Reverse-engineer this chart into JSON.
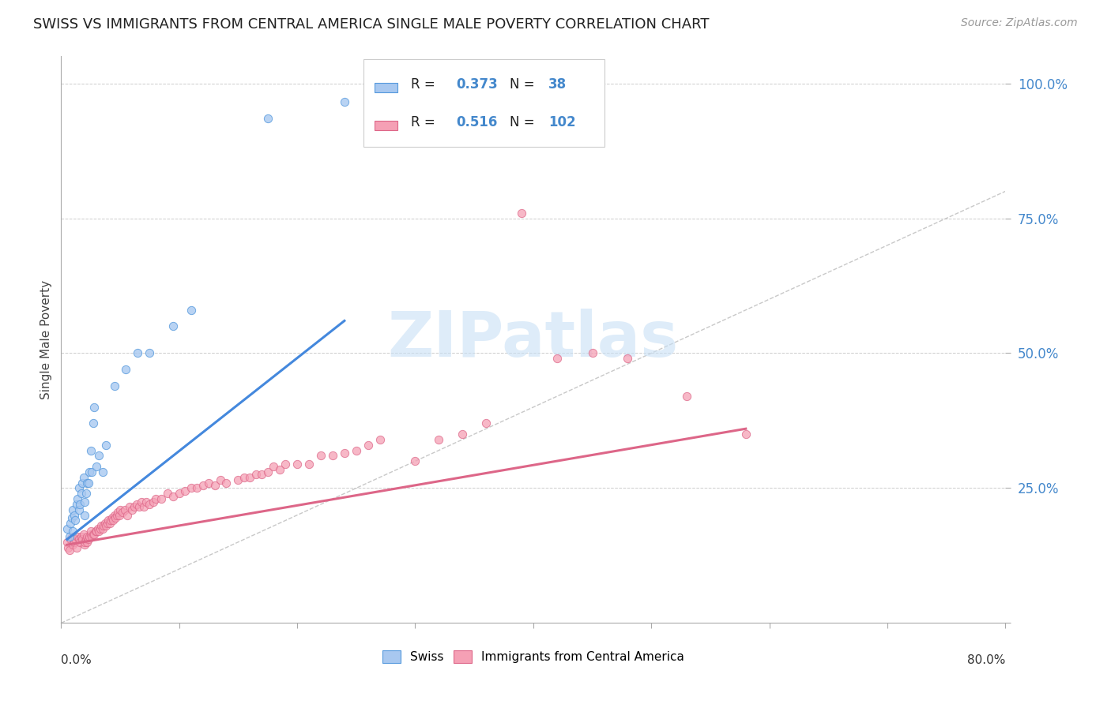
{
  "title": "SWISS VS IMMIGRANTS FROM CENTRAL AMERICA SINGLE MALE POVERTY CORRELATION CHART",
  "source": "Source: ZipAtlas.com",
  "ylabel": "Single Male Poverty",
  "xlim": [
    0.0,
    0.8
  ],
  "ylim": [
    0.0,
    1.05
  ],
  "ytick_vals": [
    0.0,
    0.25,
    0.5,
    0.75,
    1.0
  ],
  "ytick_labels": [
    "",
    "25.0%",
    "50.0%",
    "75.0%",
    "100.0%"
  ],
  "swiss_color": "#a8c8f0",
  "immigrant_color": "#f5a0b5",
  "swiss_edge_color": "#5599dd",
  "immigrant_edge_color": "#dd6688",
  "swiss_line_color": "#4488dd",
  "immigrant_line_color": "#dd6688",
  "diag_line_color": "#bbbbbb",
  "watermark_color": "#c8e0f5",
  "swiss_x": [
    0.005,
    0.007,
    0.008,
    0.009,
    0.01,
    0.01,
    0.011,
    0.012,
    0.013,
    0.014,
    0.015,
    0.015,
    0.016,
    0.017,
    0.018,
    0.019,
    0.02,
    0.02,
    0.021,
    0.022,
    0.023,
    0.024,
    0.025,
    0.026,
    0.027,
    0.028,
    0.03,
    0.032,
    0.035,
    0.038,
    0.045,
    0.055,
    0.065,
    0.075,
    0.095,
    0.11,
    0.175,
    0.24
  ],
  "swiss_y": [
    0.175,
    0.16,
    0.185,
    0.195,
    0.17,
    0.21,
    0.2,
    0.19,
    0.22,
    0.23,
    0.21,
    0.25,
    0.22,
    0.24,
    0.26,
    0.27,
    0.2,
    0.225,
    0.24,
    0.26,
    0.26,
    0.28,
    0.32,
    0.28,
    0.37,
    0.4,
    0.29,
    0.31,
    0.28,
    0.33,
    0.44,
    0.47,
    0.5,
    0.5,
    0.55,
    0.58,
    0.935,
    0.965
  ],
  "immigrant_x": [
    0.005,
    0.006,
    0.007,
    0.008,
    0.009,
    0.01,
    0.011,
    0.012,
    0.013,
    0.014,
    0.015,
    0.016,
    0.017,
    0.018,
    0.019,
    0.02,
    0.02,
    0.021,
    0.022,
    0.022,
    0.023,
    0.024,
    0.025,
    0.025,
    0.026,
    0.027,
    0.028,
    0.029,
    0.03,
    0.031,
    0.032,
    0.033,
    0.034,
    0.035,
    0.036,
    0.037,
    0.038,
    0.039,
    0.04,
    0.041,
    0.042,
    0.043,
    0.044,
    0.045,
    0.046,
    0.047,
    0.048,
    0.049,
    0.05,
    0.052,
    0.054,
    0.056,
    0.058,
    0.06,
    0.062,
    0.064,
    0.066,
    0.068,
    0.07,
    0.072,
    0.075,
    0.078,
    0.08,
    0.085,
    0.09,
    0.095,
    0.1,
    0.105,
    0.11,
    0.115,
    0.12,
    0.125,
    0.13,
    0.135,
    0.14,
    0.15,
    0.155,
    0.16,
    0.165,
    0.17,
    0.175,
    0.18,
    0.185,
    0.19,
    0.2,
    0.21,
    0.22,
    0.23,
    0.24,
    0.25,
    0.26,
    0.27,
    0.3,
    0.32,
    0.34,
    0.36,
    0.39,
    0.42,
    0.45,
    0.48,
    0.53,
    0.58
  ],
  "immigrant_y": [
    0.15,
    0.14,
    0.135,
    0.155,
    0.16,
    0.145,
    0.15,
    0.155,
    0.14,
    0.16,
    0.155,
    0.15,
    0.16,
    0.155,
    0.165,
    0.145,
    0.15,
    0.155,
    0.15,
    0.16,
    0.155,
    0.16,
    0.165,
    0.17,
    0.16,
    0.165,
    0.165,
    0.17,
    0.17,
    0.175,
    0.17,
    0.175,
    0.18,
    0.175,
    0.18,
    0.185,
    0.18,
    0.185,
    0.19,
    0.185,
    0.19,
    0.195,
    0.19,
    0.2,
    0.195,
    0.2,
    0.205,
    0.2,
    0.21,
    0.205,
    0.21,
    0.2,
    0.215,
    0.21,
    0.215,
    0.22,
    0.215,
    0.225,
    0.215,
    0.225,
    0.22,
    0.225,
    0.23,
    0.23,
    0.24,
    0.235,
    0.24,
    0.245,
    0.25,
    0.25,
    0.255,
    0.26,
    0.255,
    0.265,
    0.26,
    0.265,
    0.27,
    0.27,
    0.275,
    0.275,
    0.28,
    0.29,
    0.285,
    0.295,
    0.295,
    0.295,
    0.31,
    0.31,
    0.315,
    0.32,
    0.33,
    0.34,
    0.3,
    0.34,
    0.35,
    0.37,
    0.76,
    0.49,
    0.5,
    0.49,
    0.42,
    0.35
  ],
  "swiss_trendline_x": [
    0.005,
    0.24
  ],
  "swiss_trendline_y": [
    0.155,
    0.56
  ],
  "immigrant_trendline_x": [
    0.005,
    0.58
  ],
  "immigrant_trendline_y": [
    0.145,
    0.36
  ]
}
